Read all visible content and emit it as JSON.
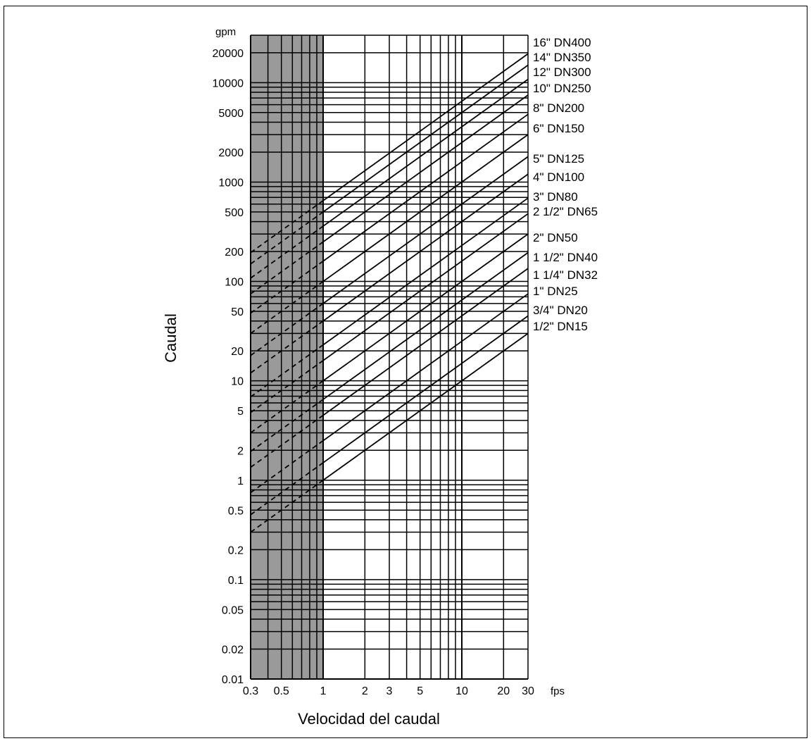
{
  "chart_data": {
    "type": "line",
    "xlabel": "Velocidad del caudal",
    "ylabel": "Caudal",
    "x_unit": "fps",
    "y_unit": "gpm",
    "x_scale": "log",
    "y_scale": "log",
    "xlim": [
      0.3,
      30
    ],
    "ylim": [
      0.01,
      30000
    ],
    "x_ticks": [
      0.3,
      0.5,
      1,
      2,
      3,
      5,
      10,
      20,
      30
    ],
    "x_tick_labels": [
      "0.3",
      "0.5",
      "1",
      "2",
      "3",
      "5",
      "10",
      "20",
      "30"
    ],
    "y_ticks": [
      0.01,
      0.02,
      0.05,
      0.1,
      0.2,
      0.5,
      1,
      2,
      5,
      10,
      20,
      50,
      100,
      200,
      500,
      1000,
      2000,
      5000,
      10000,
      20000
    ],
    "y_tick_labels": [
      "0.01",
      "0.02",
      "0.05",
      "0.1",
      "0.2",
      "0.5",
      "1",
      "2",
      "5",
      "10",
      "20",
      "50",
      "100",
      "200",
      "500",
      "1000",
      "2000",
      "5000",
      "10000",
      "20000"
    ],
    "shaded_region_x": [
      0.3,
      1
    ],
    "dashed_region_x": [
      0.3,
      1
    ],
    "grid": true,
    "series": [
      {
        "name": "16\" DN400",
        "flow_at_1fps": 650
      },
      {
        "name": "14\" DN350",
        "flow_at_1fps": 500
      },
      {
        "name": "12\" DN300",
        "flow_at_1fps": 360
      },
      {
        "name": "10\" DN250",
        "flow_at_1fps": 250
      },
      {
        "name": "8\" DN200",
        "flow_at_1fps": 160
      },
      {
        "name": "6\" DN150",
        "flow_at_1fps": 100
      },
      {
        "name": "5\" DN125",
        "flow_at_1fps": 60
      },
      {
        "name": "4\" DN100",
        "flow_at_1fps": 40
      },
      {
        "name": "3\" DN80",
        "flow_at_1fps": 23
      },
      {
        "name": "2 1/2\" DN65",
        "flow_at_1fps": 16
      },
      {
        "name": "2\" DN50",
        "flow_at_1fps": 10
      },
      {
        "name": "1 1/2\" DN40",
        "flow_at_1fps": 6.5
      },
      {
        "name": "1 1/4\" DN32",
        "flow_at_1fps": 4.5
      },
      {
        "name": "1\" DN25",
        "flow_at_1fps": 2.5
      },
      {
        "name": "3/4\" DN20",
        "flow_at_1fps": 1.5
      },
      {
        "name": "1/2\" DN15",
        "flow_at_1fps": 1
      }
    ]
  }
}
